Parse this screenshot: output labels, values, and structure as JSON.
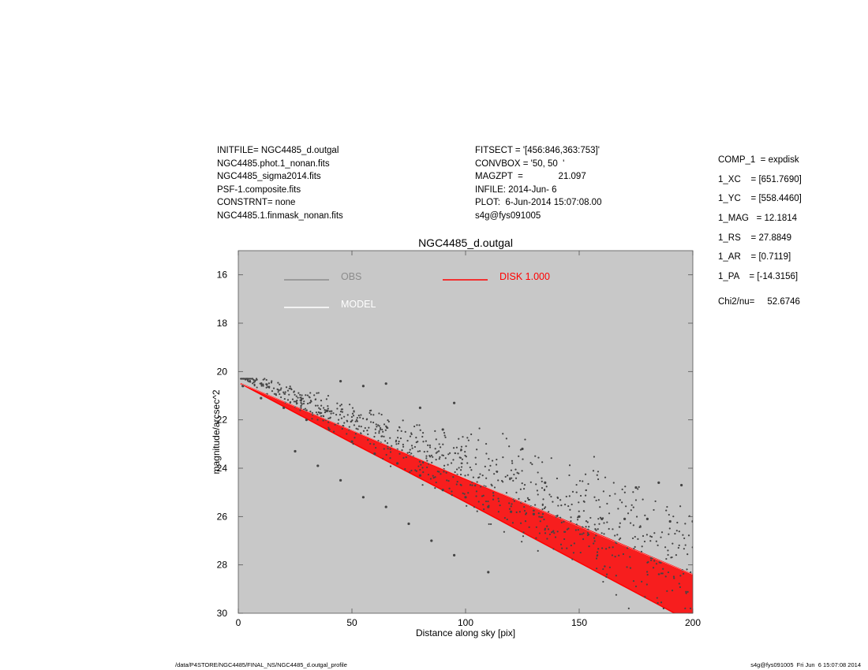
{
  "header": {
    "left": [
      "INITFILE= NGC4485_d.outgal",
      "NGC4485.phot.1_nonan.fits",
      "NGC4485_sigma2014.fits",
      "PSF-1.composite.fits",
      "CONSTRNT= none",
      "NGC4485.1.finmask_nonan.fits"
    ],
    "middle": [
      "FITSECT = '[456:846,363:753]'",
      "CONVBOX = '50, 50  '",
      "MAGZPT  =              21.097",
      "INFILE: 2014-Jun- 6",
      "PLOT:  6-Jun-2014 15:07:08.00",
      "s4g@fys091005"
    ],
    "right": [
      "COMP_1  = expdisk",
      "1_XC    = [651.7690]",
      "1_YC    = [558.4460]",
      "1_MAG   = 12.1814",
      "1_RS    = 27.8849",
      "1_AR    = [0.7119]",
      "1_PA    = [-14.3156]"
    ],
    "chi2": "Chi2/nu=     52.6746"
  },
  "footer": {
    "left": "/data/P4STORE/NGC4485/FINAL_NS/NGC4485_d.outgal_profile",
    "right": "s4g@fys091005  Fri Jun  6 15:07:08 2014"
  },
  "colors": {
    "plot_background": "#c8c8c8",
    "obs": "#444444",
    "obs_legend": "#8c8c8c",
    "model": "#ffffff",
    "disk": "#ff0000"
  },
  "chart_data": {
    "type": "scatter",
    "title": "NGC4485_d.outgal",
    "xlabel": "Distance along sky [pix]",
    "ylabel": "magnitude/arcsec^2",
    "xlim": [
      0,
      200
    ],
    "ylim": [
      30,
      15
    ],
    "y_inverted": true,
    "grid": false,
    "xticks": [
      0,
      50,
      100,
      150,
      200
    ],
    "yticks": [
      16,
      18,
      20,
      22,
      24,
      26,
      28,
      30
    ],
    "legend": [
      {
        "name": "OBS",
        "color": "#8c8c8c"
      },
      {
        "name": "MODEL",
        "color": "#ffffff"
      },
      {
        "name": "DISK  1.000",
        "color": "#ff0000"
      }
    ],
    "series": [
      {
        "name": "OBS",
        "kind": "scatter",
        "points": [
          [
            2,
            20.6
          ],
          [
            10,
            21.1
          ],
          [
            20,
            21.5
          ],
          [
            30,
            22.0
          ],
          [
            40,
            22.4
          ],
          [
            50,
            22.9
          ],
          [
            60,
            23.4
          ],
          [
            70,
            23.8
          ],
          [
            80,
            24.3
          ],
          [
            90,
            24.9
          ],
          [
            100,
            25.2
          ],
          [
            110,
            25.6
          ],
          [
            120,
            25.8
          ],
          [
            130,
            25.9
          ],
          [
            140,
            26.0
          ],
          [
            150,
            26.0
          ],
          [
            160,
            26.1
          ],
          [
            170,
            26.1
          ],
          [
            180,
            26.1
          ],
          [
            190,
            26.2
          ],
          [
            200,
            26.2
          ],
          [
            25,
            23.3
          ],
          [
            35,
            23.9
          ],
          [
            45,
            24.5
          ],
          [
            55,
            25.2
          ],
          [
            65,
            25.6
          ],
          [
            75,
            26.3
          ],
          [
            85,
            27.0
          ],
          [
            95,
            27.6
          ],
          [
            110,
            28.3
          ],
          [
            45,
            20.4
          ],
          [
            55,
            20.6
          ],
          [
            65,
            20.5
          ],
          [
            80,
            21.5
          ],
          [
            90,
            22.4
          ],
          [
            95,
            21.3
          ],
          [
            125,
            23.2
          ],
          [
            135,
            24.6
          ],
          [
            175,
            24.8
          ],
          [
            185,
            24.6
          ],
          [
            195,
            24.7
          ]
        ]
      },
      {
        "name": "MODEL",
        "kind": "line",
        "points": [
          [
            1,
            20.5
          ],
          [
            200,
            28.4
          ]
        ]
      },
      {
        "name": "DISK  1.000",
        "kind": "band",
        "points_upper": [
          [
            1,
            20.5
          ],
          [
            50,
            22.45
          ],
          [
            100,
            24.45
          ],
          [
            150,
            26.4
          ],
          [
            200,
            28.4
          ]
        ],
        "points_lower": [
          [
            1,
            20.5
          ],
          [
            50,
            22.95
          ],
          [
            100,
            25.4
          ],
          [
            150,
            27.9
          ],
          [
            180,
            29.4
          ],
          [
            200,
            30.4
          ]
        ]
      }
    ]
  }
}
